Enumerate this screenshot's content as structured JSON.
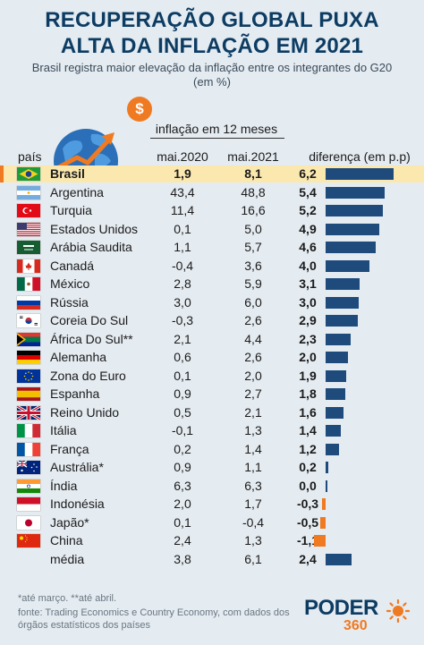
{
  "title_line1": "RECUPERAÇÃO GLOBAL PUXA",
  "title_line2": "ALTA DA INFLAÇÃO EM 2021",
  "subtitle_line1": "Brasil registra maior elevação da inflação entre os integrantes do G20",
  "subtitle_line2": "(em %)",
  "coin_symbol": "$",
  "header_inflacao": "inflação em 12 meses",
  "header_pais": "país",
  "header_2020": "mai.2020",
  "header_2021": "mai.2021",
  "header_diferenca": "diferença (em p.p)",
  "colors": {
    "positive_bar": "#1e4a7c",
    "negative_bar": "#f07a21",
    "highlight_row": "#fbe8ae",
    "title": "#0d3c63"
  },
  "chart_data": {
    "type": "table",
    "columns": [
      "país",
      "mai.2020",
      "mai.2021",
      "diferença (em p.p)"
    ],
    "bar_series": "diferença (em p.p)",
    "bar_range": [
      -1.1,
      6.2
    ],
    "rows": [
      {
        "pais": "Brasil",
        "v2020": "1,9",
        "v2021": "8,1",
        "dif": "6,2",
        "dif_value": 6.2,
        "highlight": true,
        "flag": "brazil-flag-icon"
      },
      {
        "pais": "Argentina",
        "v2020": "43,4",
        "v2021": "48,8",
        "dif": "5,4",
        "dif_value": 5.4,
        "flag": "argentina-flag-icon"
      },
      {
        "pais": "Turquia",
        "v2020": "11,4",
        "v2021": "16,6",
        "dif": "5,2",
        "dif_value": 5.2,
        "flag": "turkey-flag-icon"
      },
      {
        "pais": "Estados Unidos",
        "v2020": "0,1",
        "v2021": "5,0",
        "dif": "4,9",
        "dif_value": 4.9,
        "flag": "usa-flag-icon"
      },
      {
        "pais": "Arábia Saudita",
        "v2020": "1,1",
        "v2021": "5,7",
        "dif": "4,6",
        "dif_value": 4.6,
        "flag": "saudi-arabia-flag-icon"
      },
      {
        "pais": "Canadá",
        "v2020": "-0,4",
        "v2021": "3,6",
        "dif": "4,0",
        "dif_value": 4.0,
        "flag": "canada-flag-icon"
      },
      {
        "pais": "México",
        "v2020": "2,8",
        "v2021": "5,9",
        "dif": "3,1",
        "dif_value": 3.1,
        "flag": "mexico-flag-icon"
      },
      {
        "pais": "Rússia",
        "v2020": "3,0",
        "v2021": "6,0",
        "dif": "3,0",
        "dif_value": 3.0,
        "flag": "russia-flag-icon"
      },
      {
        "pais": "Coreia Do Sul",
        "v2020": "-0,3",
        "v2021": "2,6",
        "dif": "2,9",
        "dif_value": 2.9,
        "flag": "south-korea-flag-icon"
      },
      {
        "pais": "África Do Sul**",
        "v2020": "2,1",
        "v2021": "4,4",
        "dif": "2,3",
        "dif_value": 2.3,
        "flag": "south-africa-flag-icon"
      },
      {
        "pais": "Alemanha",
        "v2020": "0,6",
        "v2021": "2,6",
        "dif": "2,0",
        "dif_value": 2.0,
        "flag": "germany-flag-icon"
      },
      {
        "pais": "Zona do Euro",
        "v2020": "0,1",
        "v2021": "2,0",
        "dif": "1,9",
        "dif_value": 1.9,
        "flag": "eu-flag-icon"
      },
      {
        "pais": "Espanha",
        "v2020": "0,9",
        "v2021": "2,7",
        "dif": "1,8",
        "dif_value": 1.8,
        "flag": "spain-flag-icon"
      },
      {
        "pais": "Reino Unido",
        "v2020": "0,5",
        "v2021": "2,1",
        "dif": "1,6",
        "dif_value": 1.6,
        "flag": "uk-flag-icon"
      },
      {
        "pais": "Itália",
        "v2020": "-0,1",
        "v2021": "1,3",
        "dif": "1,4",
        "dif_value": 1.4,
        "flag": "italy-flag-icon"
      },
      {
        "pais": "França",
        "v2020": "0,2",
        "v2021": "1,4",
        "dif": "1,2",
        "dif_value": 1.2,
        "flag": "france-flag-icon"
      },
      {
        "pais": "Austrália*",
        "v2020": "0,9",
        "v2021": "1,1",
        "dif": "0,2",
        "dif_value": 0.2,
        "flag": "australia-flag-icon"
      },
      {
        "pais": "Índia",
        "v2020": "6,3",
        "v2021": "6,3",
        "dif": "0,0",
        "dif_value": 0.0,
        "flag": "india-flag-icon"
      },
      {
        "pais": "Indonésia",
        "v2020": "2,0",
        "v2021": "1,7",
        "dif": "-0,3",
        "dif_value": -0.3,
        "flag": "indonesia-flag-icon"
      },
      {
        "pais": "Japão*",
        "v2020": "0,1",
        "v2021": "-0,4",
        "dif": "-0,5",
        "dif_value": -0.5,
        "flag": "japan-flag-icon"
      },
      {
        "pais": "China",
        "v2020": "2,4",
        "v2021": "1,3",
        "dif": "-1,1",
        "dif_value": -1.1,
        "flag": "china-flag-icon"
      },
      {
        "pais": "média",
        "v2020": "3,8",
        "v2021": "6,1",
        "dif": "2,4",
        "dif_value": 2.4,
        "flag": ""
      }
    ]
  },
  "footnote_line1": "*até março. **até abril.",
  "footnote_line2": "fonte: Trading Economics e Country Economy, com dados dos",
  "footnote_line3": "órgãos estatísticos dos países",
  "logo_word": "PODER",
  "logo_number": "360"
}
